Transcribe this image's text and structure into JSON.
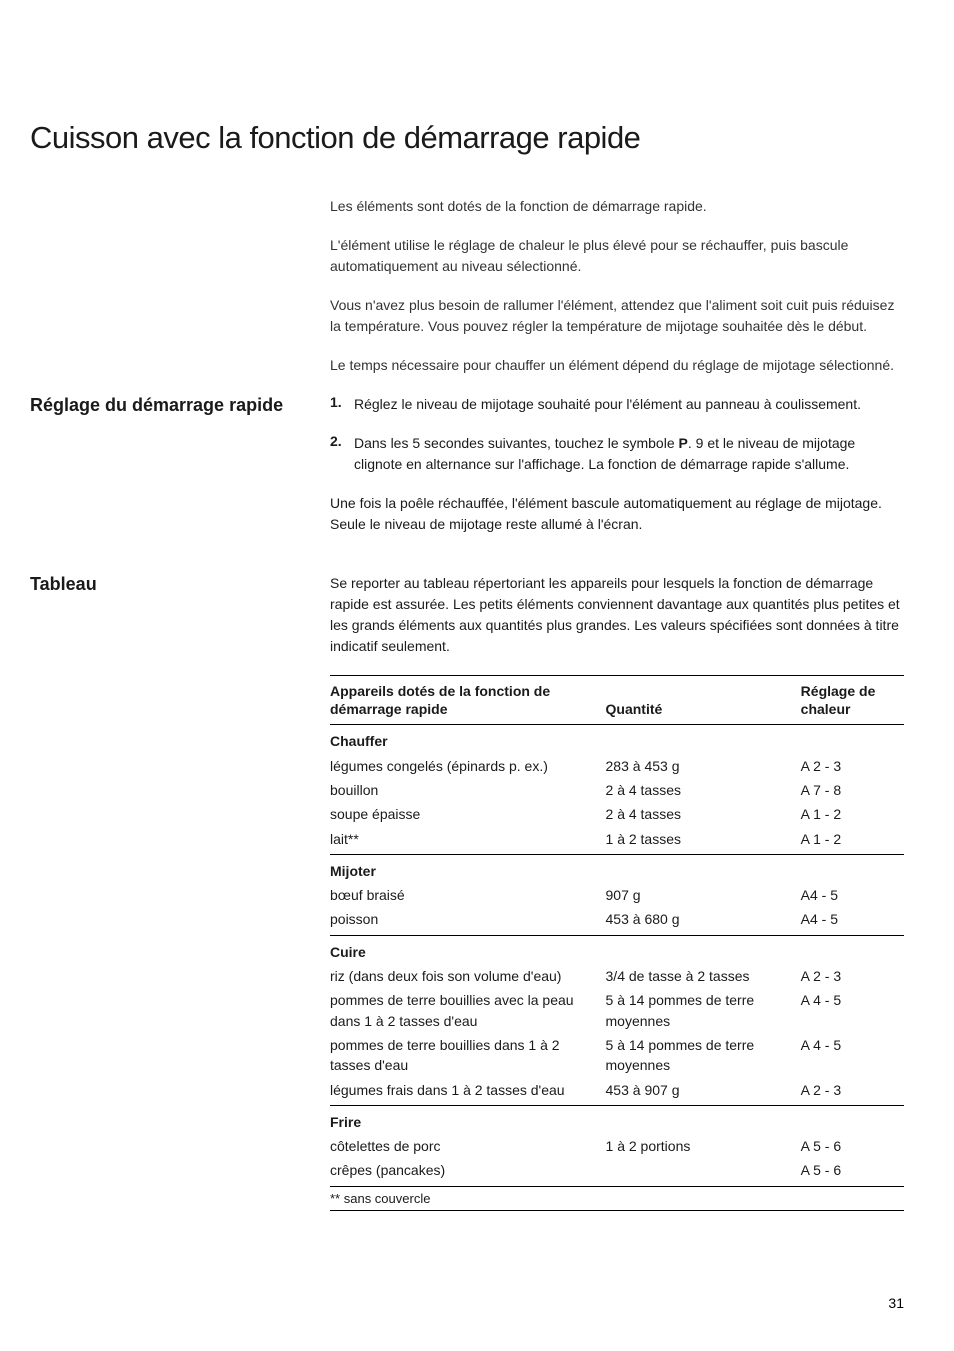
{
  "title": "Cuisson avec la fonction de démarrage rapide",
  "intro": [
    "Les éléments sont dotés de la fonction de démarrage rapide.",
    "L'élément utilise le réglage de chaleur le plus élevé pour se réchauffer, puis bascule automatiquement au niveau sélectionné.",
    "Vous n'avez plus besoin de rallumer l'élément, attendez que l'aliment soit cuit puis réduisez la température. Vous pouvez régler la température de mijotage souhaitée dès le début.",
    "Le temps nécessaire pour chauffer un élément dépend du réglage de mijotage sélectionné."
  ],
  "section1": {
    "label": "Réglage du démarrage rapide",
    "steps": [
      {
        "n": "1.",
        "text": "Réglez le niveau de mijotage souhaité pour l'élément au panneau à coulissement."
      },
      {
        "n": "2.",
        "text_before": "Dans les 5 secondes suivantes, touchez le symbole ",
        "bold": "P",
        "text_after": ". 9 et le niveau de mijotage clignote en alternance sur l'affichage. La fonction de démarrage rapide s'allume."
      }
    ],
    "after": "Une fois la poêle réchauffée, l'élément bascule automatiquement au réglage de mijotage. Seule le niveau de mijotage reste allumé à l'écran."
  },
  "section2": {
    "label": "Tableau",
    "intro": "Se reporter au tableau répertoriant les appareils pour lesquels la fonction de démarrage rapide est assurée. Les petits éléments conviennent davantage aux quantités plus petites et les grands éléments aux quantités plus grandes. Les valeurs spécifiées sont données à titre indicatif seulement.",
    "columns": [
      "Appareils dotés de la fonction de démarrage rapide",
      "Quantité",
      "Réglage de chaleur"
    ],
    "groups": [
      {
        "name": "Chauffer",
        "rows": [
          {
            "item": "légumes congelés (épinards p. ex.)",
            "qty": "283 à 453 g",
            "heat": "A 2 - 3"
          },
          {
            "item": "bouillon",
            "qty": "2 à 4 tasses",
            "heat": "A 7 - 8"
          },
          {
            "item": "soupe épaisse",
            "qty": "2 à 4 tasses",
            "heat": "A 1 - 2"
          },
          {
            "item": "lait**",
            "qty": "1 à 2 tasses",
            "heat": "A 1 - 2"
          }
        ]
      },
      {
        "name": "Mijoter",
        "rows": [
          {
            "item": "bœuf braisé",
            "qty": "907 g",
            "heat": "A4 - 5"
          },
          {
            "item": "poisson",
            "qty": "453 à 680 g",
            "heat": "A4 - 5"
          }
        ]
      },
      {
        "name": "Cuire",
        "rows": [
          {
            "item": "riz (dans deux fois son volume d'eau)",
            "qty": "3/4 de tasse à 2 tasses",
            "heat": "A 2 - 3"
          },
          {
            "item": "pommes de terre bouillies avec la peau dans 1 à 2 tasses d'eau",
            "qty": "5 à 14 pommes de terre moyennes",
            "heat": "A 4 - 5"
          },
          {
            "item": "pommes de terre bouillies dans 1 à 2 tasses d'eau",
            "qty": "5 à 14 pommes de terre moyennes",
            "heat": "A 4 - 5"
          },
          {
            "item": "légumes frais dans 1 à 2 tasses d'eau",
            "qty": "453 à 907 g",
            "heat": "A 2 - 3"
          }
        ]
      },
      {
        "name": "Frire",
        "rows": [
          {
            "item": "côtelettes de porc",
            "qty": "1 à 2 portions",
            "heat": "A 5 - 6"
          },
          {
            "item": "crêpes (pancakes)",
            "qty": "",
            "heat": "A 5 - 6"
          }
        ]
      }
    ],
    "footnote": "**   sans couvercle"
  },
  "page_number": "31"
}
